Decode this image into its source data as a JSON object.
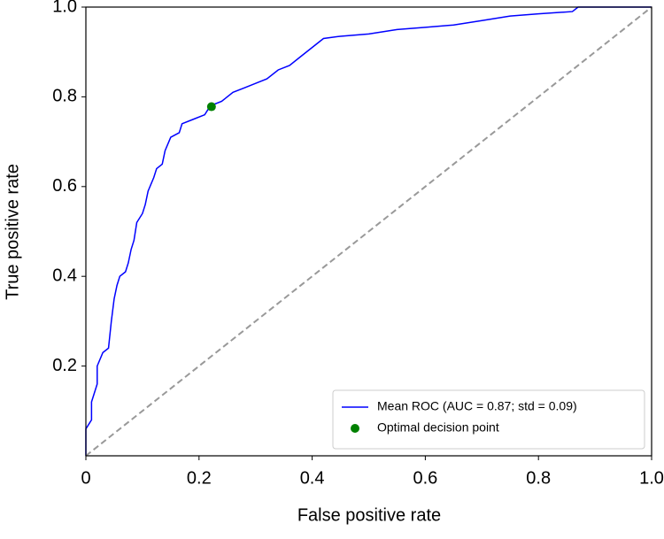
{
  "chart_data": {
    "type": "line",
    "xlabel": "False positive rate",
    "ylabel": "True positive rate",
    "xlim": [
      0,
      1
    ],
    "ylim": [
      0,
      1
    ],
    "xticks": [
      0,
      0.2,
      0.4,
      0.6,
      0.8,
      {
        "value": 1,
        "label": "1.0"
      }
    ],
    "yticks": [
      0.2,
      0.4,
      0.6,
      0.8,
      {
        "value": 1,
        "label": "1.0"
      }
    ],
    "legend": "lower right",
    "series": [
      {
        "name": "Mean ROC (AUC = 0.87; std = 0.09)",
        "color": "#0000ff",
        "x": [
          0,
          0,
          0.01,
          0.01,
          0.02,
          0.02,
          0.03,
          0.04,
          0.045,
          0.05,
          0.055,
          0.06,
          0.07,
          0.075,
          0.08,
          0.085,
          0.09,
          0.1,
          0.105,
          0.11,
          0.12,
          0.125,
          0.135,
          0.14,
          0.15,
          0.165,
          0.17,
          0.19,
          0.21,
          0.22,
          0.24,
          0.26,
          0.28,
          0.3,
          0.32,
          0.34,
          0.36,
          0.38,
          0.4,
          0.42,
          0.45,
          0.5,
          0.55,
          0.6,
          0.65,
          0.7,
          0.75,
          0.8,
          0.86,
          0.87,
          1
        ],
        "values": [
          0,
          0.06,
          0.08,
          0.12,
          0.16,
          0.2,
          0.23,
          0.24,
          0.3,
          0.35,
          0.38,
          0.4,
          0.41,
          0.43,
          0.46,
          0.48,
          0.52,
          0.54,
          0.56,
          0.59,
          0.62,
          0.64,
          0.65,
          0.68,
          0.71,
          0.72,
          0.74,
          0.75,
          0.76,
          0.78,
          0.79,
          0.81,
          0.82,
          0.83,
          0.84,
          0.86,
          0.87,
          0.89,
          0.91,
          0.93,
          0.935,
          0.94,
          0.95,
          0.955,
          0.96,
          0.97,
          0.98,
          0.985,
          0.99,
          1,
          1
        ]
      },
      {
        "color": "#999999",
        "linestyle": "dashed",
        "x": [
          0,
          1
        ],
        "values": [
          0,
          1
        ]
      },
      {
        "name": "Optimal decision point",
        "color": "#008000",
        "marker": "circle",
        "x": [
          0.222
        ],
        "values": [
          0.778
        ]
      }
    ]
  }
}
